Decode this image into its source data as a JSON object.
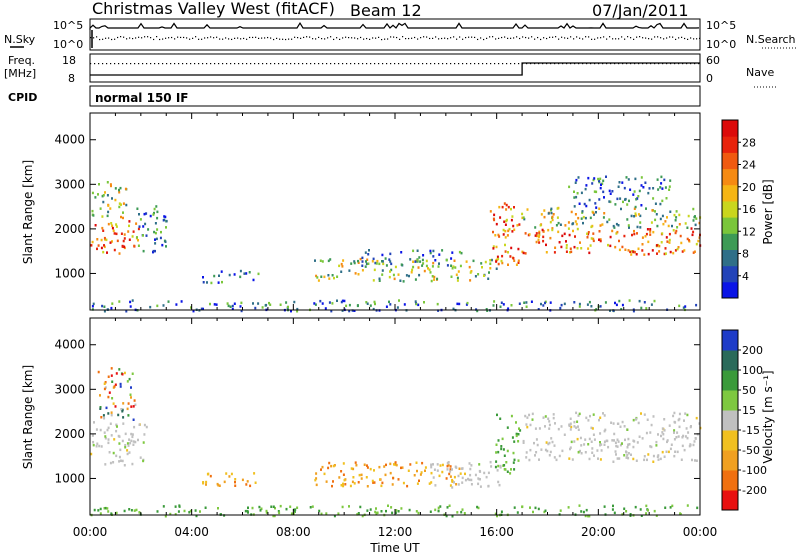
{
  "header": {
    "title": "Christmas Valley West (fitACF)",
    "beam": "Beam 12",
    "date": "07/Jan/2011"
  },
  "status_panels": {
    "nsky_label": "N.Sky",
    "nsearch_label": "N.Search",
    "nsky_ticks": [
      "10^5",
      "10^0"
    ],
    "nsearch_ticks": [
      "10^5",
      "10^0"
    ],
    "freq_label_1": "Freq.",
    "freq_label_2": "[MHz]",
    "freq_ticks": [
      "18",
      "8"
    ],
    "nave_label": "Nave",
    "nave_ticks": [
      "60",
      "0"
    ],
    "cpid_label": "CPID",
    "cpid_value": "normal 150 IF"
  },
  "chart_data": [
    {
      "type": "heatmap",
      "panel": "power",
      "ylabel": "Slant Range [km]",
      "xlabel": "Time UT",
      "ylim": [
        180,
        4600
      ],
      "xlim_hours": [
        0,
        24
      ],
      "x_ticks": [
        "00:00",
        "04:00",
        "08:00",
        "12:00",
        "16:00",
        "20:00",
        "00:00"
      ],
      "y_ticks": [
        1000,
        2000,
        3000,
        4000
      ],
      "colorbar": {
        "label": "Power [dB]",
        "ticks": [
          "28",
          "24",
          "20",
          "16",
          "12",
          "8",
          "4"
        ],
        "colors_low_to_high": [
          "#0a14e6",
          "#2243b8",
          "#2f6f88",
          "#3d9a55",
          "#7ac63a",
          "#c9d61e",
          "#f5b514",
          "#f58a12",
          "#f05a10",
          "#e8230c",
          "#dc0a0a"
        ]
      },
      "scatter_regions": [
        {
          "t": [
            0.0,
            1.9
          ],
          "r": [
            1400,
            2200
          ],
          "level": "high"
        },
        {
          "t": [
            0.0,
            1.4
          ],
          "r": [
            2200,
            3100
          ],
          "level": "mid"
        },
        {
          "t": [
            1.8,
            3.0
          ],
          "r": [
            1500,
            2600
          ],
          "level": "low"
        },
        {
          "t": [
            4.4,
            6.9
          ],
          "r": [
            800,
            1100
          ],
          "level": "low"
        },
        {
          "t": [
            8.8,
            16.0
          ],
          "r": [
            850,
            1350
          ],
          "level": "mid"
        },
        {
          "t": [
            10.2,
            14.6
          ],
          "r": [
            1200,
            1550
          ],
          "level": "low"
        },
        {
          "t": [
            15.7,
            17.0
          ],
          "r": [
            1200,
            2600
          ],
          "level": "high"
        },
        {
          "t": [
            17.0,
            24.0
          ],
          "r": [
            1450,
            2050
          ],
          "level": "high"
        },
        {
          "t": [
            17.0,
            24.0
          ],
          "r": [
            2050,
            2500
          ],
          "level": "mid"
        },
        {
          "t": [
            18.8,
            22.8
          ],
          "r": [
            2500,
            3200
          ],
          "level": "low"
        },
        {
          "t": [
            0.0,
            24.0
          ],
          "r": [
            180,
            420
          ],
          "level": "low"
        }
      ]
    },
    {
      "type": "heatmap",
      "panel": "velocity",
      "ylabel": "Slant Range [km]",
      "xlabel": "Time UT",
      "ylim": [
        180,
        4600
      ],
      "xlim_hours": [
        0,
        24
      ],
      "x_ticks": [
        "00:00",
        "04:00",
        "08:00",
        "12:00",
        "16:00",
        "20:00",
        "00:00"
      ],
      "y_ticks": [
        1000,
        2000,
        3000,
        4000
      ],
      "colorbar": {
        "label": "Velocity [m s⁻¹]",
        "ticks": [
          "200",
          "100",
          "50",
          "15",
          "-15",
          "-50",
          "-100",
          "-200"
        ],
        "colors_pos_to_neg": [
          "#1f3cc8",
          "#2a6a5a",
          "#3a9a3a",
          "#7ec840",
          "#c0c0c0",
          "#f0c020",
          "#f0a020",
          "#f07010",
          "#e81010"
        ]
      },
      "scatter_regions": [
        {
          "t": [
            0.0,
            2.2
          ],
          "r": [
            1300,
            2300
          ],
          "level": "ground"
        },
        {
          "t": [
            0.3,
            1.8
          ],
          "r": [
            2300,
            3500
          ],
          "level": "mixed"
        },
        {
          "t": [
            4.4,
            6.9
          ],
          "r": [
            850,
            1150
          ],
          "level": "away"
        },
        {
          "t": [
            8.8,
            14.6
          ],
          "r": [
            850,
            1400
          ],
          "level": "away"
        },
        {
          "t": [
            13.3,
            16.2
          ],
          "r": [
            800,
            1400
          ],
          "level": "ground"
        },
        {
          "t": [
            15.9,
            16.9
          ],
          "r": [
            1100,
            2500
          ],
          "level": "toward"
        },
        {
          "t": [
            17.0,
            24.0
          ],
          "r": [
            1400,
            2500
          ],
          "level": "ground"
        },
        {
          "t": [
            0.0,
            24.0
          ],
          "r": [
            180,
            420
          ],
          "level": "toward"
        }
      ]
    }
  ]
}
